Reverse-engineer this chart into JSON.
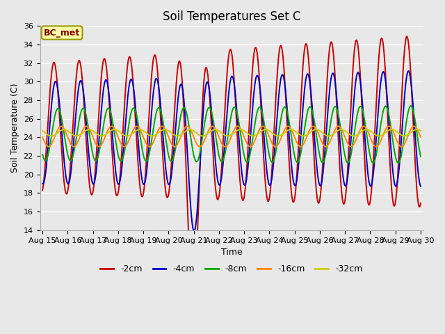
{
  "title": "Soil Temperatures Set C",
  "xlabel": "Time",
  "ylabel": "Soil Temperature (C)",
  "annotation": "BC_met",
  "ylim": [
    14,
    36
  ],
  "yticks": [
    14,
    16,
    18,
    20,
    22,
    24,
    26,
    28,
    30,
    32,
    34,
    36
  ],
  "xtick_labels": [
    "Aug 15",
    "Aug 16",
    "Aug 17",
    "Aug 18",
    "Aug 19",
    "Aug 20",
    "Aug 21",
    "Aug 22",
    "Aug 23",
    "Aug 24",
    "Aug 25",
    "Aug 26",
    "Aug 27",
    "Aug 28",
    "Aug 29",
    "Aug 30"
  ],
  "series_colors": [
    "#cc0000",
    "#0000cc",
    "#00aa00",
    "#ff8800",
    "#cccc00"
  ],
  "series_labels": [
    "-2cm",
    "-4cm",
    "-8cm",
    "-16cm",
    "-32cm"
  ],
  "plot_bg_color": "#e8e8e8",
  "fig_bg_color": "#e8e8e8",
  "grid_color": "#ffffff",
  "title_fontsize": 12,
  "axis_label_fontsize": 9,
  "tick_fontsize": 8,
  "legend_fontsize": 9
}
